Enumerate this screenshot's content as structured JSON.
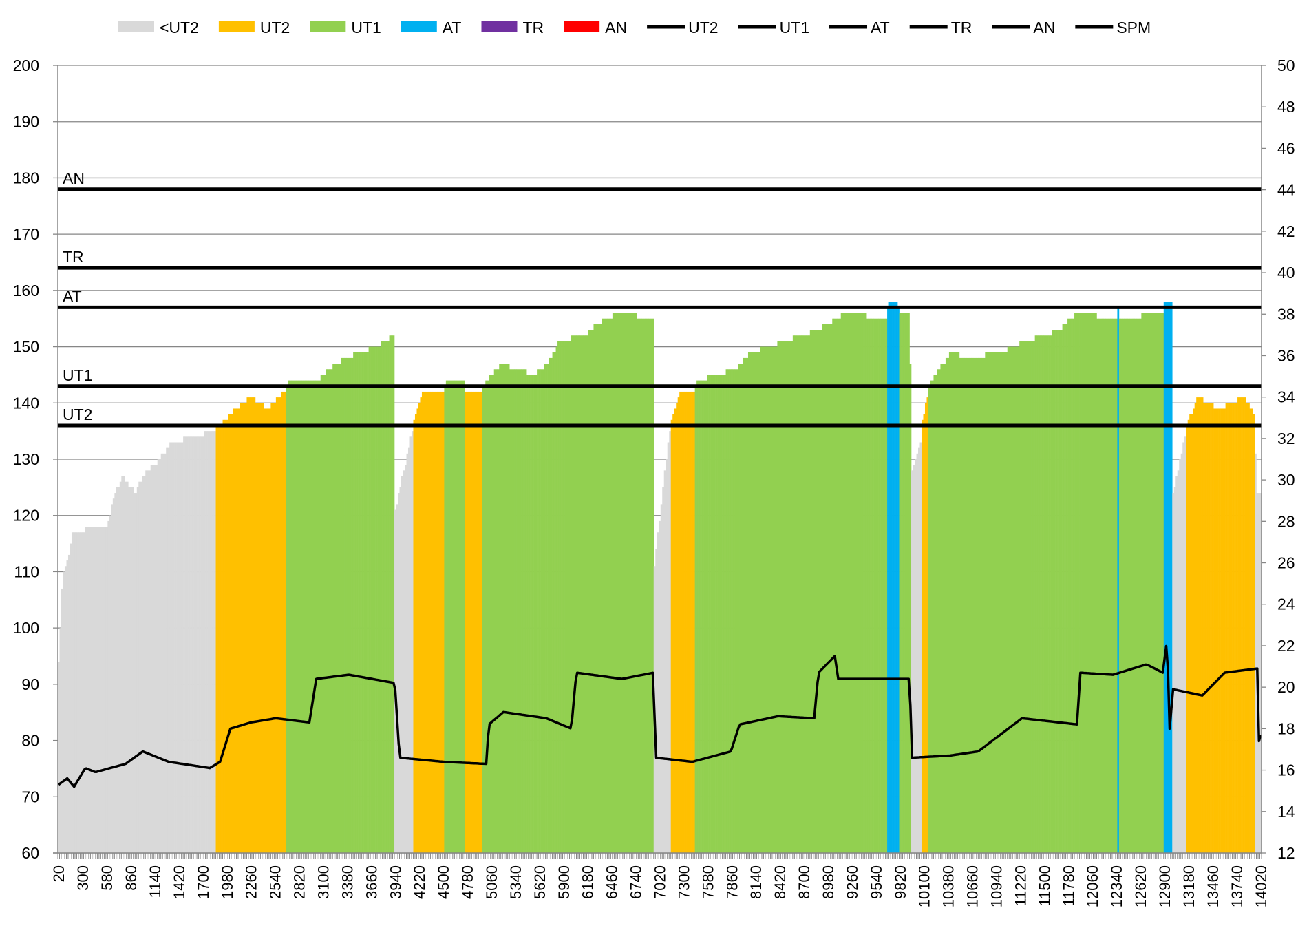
{
  "chart_data": {
    "type": "bar",
    "title": "",
    "xlabel": "",
    "ylabel": "",
    "y2label": "",
    "ylim": [
      60,
      200
    ],
    "y2lim": [
      12,
      50
    ],
    "ytick_step": 10,
    "y2tick_step": 2,
    "x_start": 20,
    "x_end": 14020,
    "x_step": 20,
    "xtick_step": 280,
    "grid": true,
    "legend_position": "top",
    "legend": [
      {
        "label": "<UT2",
        "kind": "patch",
        "color": "#d9d9d9"
      },
      {
        "label": "UT2",
        "kind": "patch",
        "color": "#ffc000"
      },
      {
        "label": "UT1",
        "kind": "patch",
        "color": "#92d050"
      },
      {
        "label": "AT",
        "kind": "patch",
        "color": "#00b0f0"
      },
      {
        "label": "TR",
        "kind": "patch",
        "color": "#7030a0"
      },
      {
        "label": "AN",
        "kind": "patch",
        "color": "#ff0000"
      },
      {
        "label": "UT2",
        "kind": "line",
        "color": "#000000"
      },
      {
        "label": "UT1",
        "kind": "line",
        "color": "#000000"
      },
      {
        "label": "AT",
        "kind": "line",
        "color": "#000000"
      },
      {
        "label": "TR",
        "kind": "line",
        "color": "#000000"
      },
      {
        "label": "AN",
        "kind": "line",
        "color": "#000000"
      },
      {
        "label": "SPM",
        "kind": "line",
        "color": "#000000"
      }
    ],
    "thresholds": [
      {
        "label": "AN",
        "value": 178
      },
      {
        "label": "TR",
        "value": 164
      },
      {
        "label": "AT",
        "value": 157
      },
      {
        "label": "UT1",
        "value": 143
      },
      {
        "label": "UT2",
        "value": 136
      }
    ],
    "zone_colors": {
      "below_ut2": "#d9d9d9",
      "ut2": "#ffc000",
      "ut1": "#92d050",
      "at": "#00b0f0",
      "tr": "#7030a0",
      "an": "#ff0000"
    },
    "heart_rate_keypoints": [
      [
        20,
        94
      ],
      [
        70,
        110
      ],
      [
        130,
        112
      ],
      [
        185,
        117
      ],
      [
        465,
        118
      ],
      [
        590,
        118
      ],
      [
        660,
        123
      ],
      [
        760,
        127
      ],
      [
        905,
        124
      ],
      [
        1000,
        127
      ],
      [
        1195,
        130
      ],
      [
        1340,
        133
      ],
      [
        1585,
        134
      ],
      [
        1825,
        135
      ],
      [
        2020,
        138
      ],
      [
        2260,
        141
      ],
      [
        2455,
        139
      ],
      [
        2650,
        142
      ],
      [
        2710,
        144
      ],
      [
        3040,
        144
      ],
      [
        3235,
        147
      ],
      [
        3525,
        149
      ],
      [
        3720,
        150
      ],
      [
        3930,
        152
      ],
      [
        3940,
        121
      ],
      [
        4110,
        133
      ],
      [
        4150,
        136
      ],
      [
        4250,
        142
      ],
      [
        4500,
        142
      ],
      [
        4545,
        144
      ],
      [
        4740,
        144
      ],
      [
        4760,
        142
      ],
      [
        4935,
        142
      ],
      [
        5000,
        144
      ],
      [
        5175,
        147
      ],
      [
        5565,
        145
      ],
      [
        5760,
        148
      ],
      [
        5855,
        151
      ],
      [
        6145,
        152
      ],
      [
        6290,
        154
      ],
      [
        6535,
        156
      ],
      [
        6950,
        155
      ],
      [
        6960,
        111
      ],
      [
        7120,
        133
      ],
      [
        7150,
        136
      ],
      [
        7265,
        142
      ],
      [
        7430,
        142
      ],
      [
        7450,
        144
      ],
      [
        7895,
        146
      ],
      [
        8090,
        149
      ],
      [
        8480,
        151
      ],
      [
        8865,
        153
      ],
      [
        9185,
        156
      ],
      [
        9670,
        155
      ],
      [
        9690,
        158
      ],
      [
        9780,
        158
      ],
      [
        9820,
        156
      ],
      [
        9935,
        156
      ],
      [
        9950,
        128
      ],
      [
        10060,
        133
      ],
      [
        10070,
        136
      ],
      [
        10150,
        142
      ],
      [
        10180,
        144
      ],
      [
        10420,
        149
      ],
      [
        10615,
        148
      ],
      [
        11000,
        149
      ],
      [
        11290,
        151
      ],
      [
        11680,
        153
      ],
      [
        11875,
        156
      ],
      [
        12340,
        155
      ],
      [
        12360,
        157
      ],
      [
        12380,
        155
      ],
      [
        12880,
        156
      ],
      [
        12900,
        158
      ],
      [
        12980,
        158
      ],
      [
        13000,
        124
      ],
      [
        13140,
        134
      ],
      [
        13160,
        136
      ],
      [
        13290,
        141
      ],
      [
        13530,
        139
      ],
      [
        13820,
        141
      ],
      [
        13940,
        138
      ],
      [
        13980,
        124
      ],
      [
        14020,
        124
      ]
    ],
    "spm_keypoints": [
      [
        20,
        15.3
      ],
      [
        120,
        15.6
      ],
      [
        200,
        15.2
      ],
      [
        330,
        16.1
      ],
      [
        450,
        15.9
      ],
      [
        620,
        16.1
      ],
      [
        800,
        16.3
      ],
      [
        1000,
        16.9
      ],
      [
        1300,
        16.4
      ],
      [
        1780,
        16.1
      ],
      [
        1900,
        16.4
      ],
      [
        2020,
        18.0
      ],
      [
        2260,
        18.3
      ],
      [
        2550,
        18.5
      ],
      [
        2940,
        18.3
      ],
      [
        3020,
        20.4
      ],
      [
        3400,
        20.6
      ],
      [
        3935,
        20.2
      ],
      [
        3990,
        16.6
      ],
      [
        4500,
        16.4
      ],
      [
        5000,
        16.3
      ],
      [
        5030,
        18.2
      ],
      [
        5200,
        18.8
      ],
      [
        5700,
        18.5
      ],
      [
        5990,
        18.0
      ],
      [
        6050,
        20.7
      ],
      [
        6580,
        20.4
      ],
      [
        6950,
        20.7
      ],
      [
        6970,
        16.6
      ],
      [
        7400,
        16.4
      ],
      [
        7850,
        16.9
      ],
      [
        7950,
        18.2
      ],
      [
        8400,
        18.6
      ],
      [
        8820,
        18.5
      ],
      [
        8870,
        20.7
      ],
      [
        9060,
        21.5
      ],
      [
        9100,
        20.4
      ],
      [
        9930,
        20.4
      ],
      [
        9960,
        16.6
      ],
      [
        10400,
        16.7
      ],
      [
        10730,
        16.9
      ],
      [
        11240,
        18.5
      ],
      [
        11890,
        18.2
      ],
      [
        11910,
        20.7
      ],
      [
        12300,
        20.6
      ],
      [
        12690,
        21.1
      ],
      [
        12880,
        20.7
      ],
      [
        12930,
        22.3
      ],
      [
        12960,
        18.0
      ],
      [
        13000,
        19.9
      ],
      [
        13340,
        19.6
      ],
      [
        13600,
        20.7
      ],
      [
        13980,
        20.9
      ],
      [
        14000,
        17.4
      ],
      [
        14020,
        17.7
      ]
    ]
  }
}
